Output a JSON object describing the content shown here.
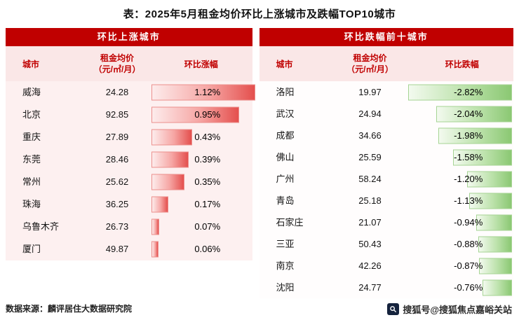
{
  "title": "表：2025年5月租金均价环比上涨城市及跌幅TOP10城市",
  "footer": {
    "source": "数据来源：麟评居住大数据研究院",
    "watermark": "搜狐号@搜狐焦点嘉峪关站"
  },
  "colors": {
    "header_red": "#c00000",
    "panel_pink": "#fae7e7",
    "bar_red": "#e4504e",
    "bar_green": "#8bc873"
  },
  "left_panel": {
    "header": "环比上涨城市",
    "col_city": "城市",
    "col_price_line1": "租金均价",
    "col_price_line2": "（元/㎡/月）",
    "col_change": "环比涨幅",
    "rows": [
      {
        "city": "威海",
        "price": "24.28",
        "change": "1.12%"
      },
      {
        "city": "北京",
        "price": "92.85",
        "change": "0.95%"
      },
      {
        "city": "重庆",
        "price": "27.89",
        "change": "0.43%"
      },
      {
        "city": "东莞",
        "price": "28.46",
        "change": "0.39%"
      },
      {
        "city": "常州",
        "price": "25.62",
        "change": "0.35%"
      },
      {
        "city": "珠海",
        "price": "36.25",
        "change": "0.17%"
      },
      {
        "city": "乌鲁木齐",
        "price": "26.73",
        "change": "0.07%"
      },
      {
        "city": "厦门",
        "price": "49.87",
        "change": "0.06%"
      }
    ]
  },
  "right_panel": {
    "header": "环比跌幅前十城市",
    "col_city": "城市",
    "col_price_line1": "租金均价",
    "col_price_line2": "（元/㎡/月）",
    "col_change": "环比跌幅",
    "rows": [
      {
        "city": "洛阳",
        "price": "19.97",
        "change": "-2.82%"
      },
      {
        "city": "武汉",
        "price": "24.94",
        "change": "-2.04%"
      },
      {
        "city": "成都",
        "price": "34.66",
        "change": "-1.98%"
      },
      {
        "city": "佛山",
        "price": "25.59",
        "change": "-1.58%"
      },
      {
        "city": "广州",
        "price": "58.24",
        "change": "-1.20%"
      },
      {
        "city": "青岛",
        "price": "25.18",
        "change": "-1.13%"
      },
      {
        "city": "石家庄",
        "price": "21.07",
        "change": "-0.94%"
      },
      {
        "city": "三亚",
        "price": "50.43",
        "change": "-0.88%"
      },
      {
        "city": "南京",
        "price": "42.26",
        "change": "-0.87%"
      },
      {
        "city": "沈阳",
        "price": "24.77",
        "change": "-0.76%"
      }
    ]
  },
  "chart_data": [
    {
      "type": "bar",
      "title": "环比上涨城市",
      "categories": [
        "威海",
        "北京",
        "重庆",
        "东莞",
        "常州",
        "珠海",
        "乌鲁木齐",
        "厦门"
      ],
      "series": [
        {
          "name": "租金均价（元/㎡/月）",
          "values": [
            24.28,
            92.85,
            27.89,
            28.46,
            25.62,
            36.25,
            26.73,
            49.87
          ]
        },
        {
          "name": "环比涨幅(%)",
          "values": [
            1.12,
            0.95,
            0.43,
            0.39,
            0.35,
            0.17,
            0.07,
            0.06
          ]
        }
      ],
      "xlabel": "城市",
      "ylabel": "环比涨幅",
      "ylim": [
        0,
        1.12
      ],
      "legend_position": "none",
      "grid": false
    },
    {
      "type": "bar",
      "title": "环比跌幅前十城市",
      "categories": [
        "洛阳",
        "武汉",
        "成都",
        "佛山",
        "广州",
        "青岛",
        "石家庄",
        "三亚",
        "南京",
        "沈阳"
      ],
      "series": [
        {
          "name": "租金均价（元/㎡/月）",
          "values": [
            19.97,
            24.94,
            34.66,
            25.59,
            58.24,
            25.18,
            21.07,
            50.43,
            42.26,
            24.77
          ]
        },
        {
          "name": "环比跌幅(%)",
          "values": [
            -2.82,
            -2.04,
            -1.98,
            -1.58,
            -1.2,
            -1.13,
            -0.94,
            -0.88,
            -0.87,
            -0.76
          ]
        }
      ],
      "xlabel": "城市",
      "ylabel": "环比跌幅",
      "ylim": [
        -2.82,
        0
      ],
      "legend_position": "none",
      "grid": false
    }
  ]
}
